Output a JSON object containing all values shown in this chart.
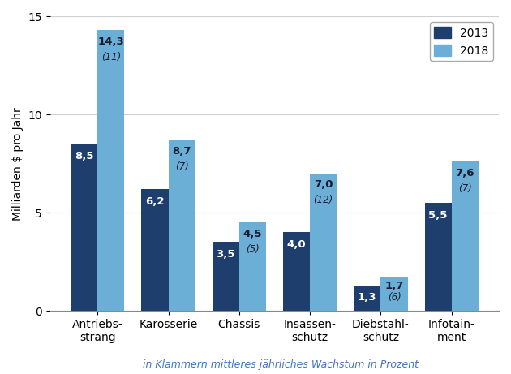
{
  "categories": [
    "Antriebs-\nstrang",
    "Karosserie",
    "Chassis",
    "Insassen-\nschutz",
    "Diebstahl-\nschutz",
    "Infotain-\nment"
  ],
  "values_2013": [
    8.5,
    6.2,
    3.5,
    4.0,
    1.3,
    5.5
  ],
  "values_2018": [
    14.3,
    8.7,
    4.5,
    7.0,
    1.7,
    7.6
  ],
  "labels_2013": [
    "8,5",
    "6,2",
    "3,5",
    "4,0",
    "1,3",
    "5,5"
  ],
  "labels_2018": [
    "14,3",
    "8,7",
    "4,5",
    "7,0",
    "1,7",
    "7,6"
  ],
  "growth": [
    11,
    7,
    5,
    12,
    6,
    7
  ],
  "color_2013": "#1e3f6e",
  "color_2018": "#6baed6",
  "ylabel": "Milliarden $ pro Jahr",
  "ylim": [
    0,
    15
  ],
  "yticks": [
    0,
    5,
    10,
    15
  ],
  "legend_2013": "2013",
  "legend_2018": "2018",
  "footnote": "in Klammern mittleres jährliches Wachstum in Prozent",
  "footnote_color": "#4472c4",
  "bar_width": 0.38,
  "label_fontsize": 9.5,
  "axis_fontsize": 10,
  "legend_fontsize": 10,
  "footnote_fontsize": 9,
  "background_color": "#ffffff"
}
